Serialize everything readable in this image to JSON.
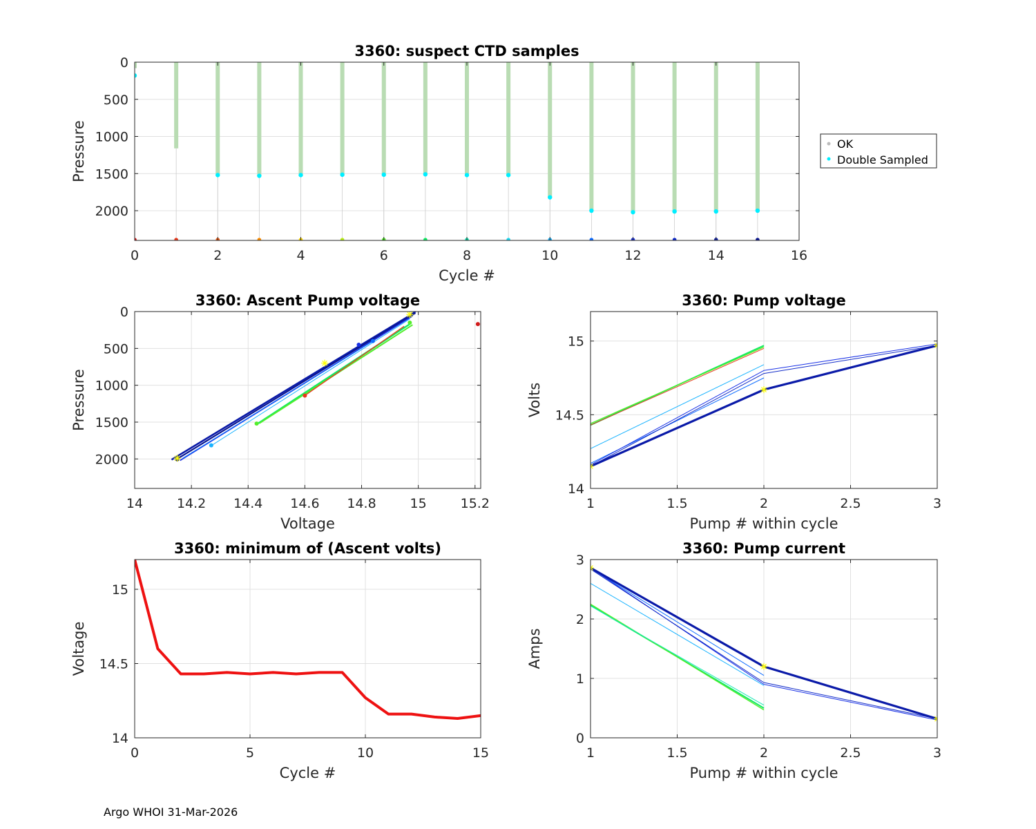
{
  "footer": "Argo WHOI 31-Mar-2026",
  "colors": {
    "ok": "#b9dcb3",
    "double": "#00eeff",
    "minline": "#ee1111",
    "marker": "#ffff00",
    "grid": "#e0e0e0"
  },
  "chart_data": [
    {
      "id": "ctd",
      "type": "scatter",
      "title": "3360: suspect CTD samples",
      "xlabel": "Cycle #",
      "ylabel": "Pressure",
      "xlim": [
        0,
        16
      ],
      "ylim": [
        0,
        2400
      ],
      "y_reversed": true,
      "xticks": [
        0,
        2,
        4,
        6,
        8,
        10,
        12,
        14,
        16
      ],
      "yticks": [
        0,
        500,
        1000,
        1500,
        2000
      ],
      "legend": {
        "position": "right",
        "entries": [
          "OK",
          "Double Sampled"
        ]
      },
      "profiles": [
        {
          "cycle": 0,
          "max_p": 80,
          "double_p": 180
        },
        {
          "cycle": 1,
          "max_p": 1160,
          "double_p": null
        },
        {
          "cycle": 2,
          "max_p": 1520,
          "double_p": 1520
        },
        {
          "cycle": 3,
          "max_p": 1530,
          "double_p": 1530
        },
        {
          "cycle": 4,
          "max_p": 1520,
          "double_p": 1520
        },
        {
          "cycle": 5,
          "max_p": 1515,
          "double_p": 1515
        },
        {
          "cycle": 6,
          "max_p": 1515,
          "double_p": 1515
        },
        {
          "cycle": 7,
          "max_p": 1510,
          "double_p": 1510
        },
        {
          "cycle": 8,
          "max_p": 1520,
          "double_p": 1520
        },
        {
          "cycle": 9,
          "max_p": 1520,
          "double_p": 1520
        },
        {
          "cycle": 10,
          "max_p": 1820,
          "double_p": 1820
        },
        {
          "cycle": 11,
          "max_p": 2000,
          "double_p": 2000
        },
        {
          "cycle": 12,
          "max_p": 2020,
          "double_p": 2020
        },
        {
          "cycle": 13,
          "max_p": 2010,
          "double_p": 2010
        },
        {
          "cycle": 14,
          "max_p": 2010,
          "double_p": 2010
        },
        {
          "cycle": 15,
          "max_p": 2000,
          "double_p": 2000
        }
      ],
      "bottom_markers": {
        "pressure": 2400,
        "colors": [
          "#d11a1a",
          "#e83a1e",
          "#f15a10",
          "#fb8c00",
          "#ffd800",
          "#b9ef19",
          "#53ee2b",
          "#11ea64",
          "#14e7b6",
          "#1fd8f0",
          "#19b3ff",
          "#0f6dff",
          "#1830e6",
          "#102ac8",
          "#0c20b3",
          "#0a1590"
        ]
      }
    },
    {
      "id": "ascent",
      "type": "line",
      "title": "3360: Ascent Pump voltage",
      "xlabel": "Voltage",
      "ylabel": "Pressure",
      "xlim": [
        14,
        15.22
      ],
      "ylim": [
        0,
        2400
      ],
      "y_reversed": true,
      "xticks": [
        14,
        14.2,
        14.4,
        14.6,
        14.8,
        15,
        15.2
      ],
      "yticks": [
        0,
        500,
        1000,
        1500,
        2000
      ],
      "series": [
        {
          "color": "#0a1aa8",
          "width": 2.6,
          "points": [
            [
              14.13,
              2010
            ],
            [
              14.98,
              30
            ],
            [
              14.99,
              0
            ]
          ]
        },
        {
          "color": "#0a1590",
          "width": 2.2,
          "points": [
            [
              14.15,
              2000
            ],
            [
              14.99,
              20
            ]
          ]
        },
        {
          "color": "#1830e6",
          "width": 1.8,
          "points": [
            [
              14.16,
              2020
            ],
            [
              14.98,
              60
            ]
          ]
        },
        {
          "color": "#0f6dff",
          "width": 1.2,
          "points": [
            [
              14.17,
              1990
            ],
            [
              14.84,
              400
            ]
          ]
        },
        {
          "color": "#19b3ff",
          "width": 1.0,
          "points": [
            [
              14.27,
              1820
            ],
            [
              14.97,
              100
            ]
          ]
        },
        {
          "color": "#11ea64",
          "width": 2.4,
          "points": [
            [
              14.43,
              1530
            ],
            [
              14.97,
              170
            ]
          ]
        },
        {
          "color": "#53ee2b",
          "width": 2.0,
          "points": [
            [
              14.44,
              1515
            ],
            [
              14.98,
              180
            ]
          ]
        },
        {
          "color": "#e83a1e",
          "width": 1.4,
          "points": [
            [
              14.6,
              1140
            ],
            [
              14.95,
              200
            ]
          ]
        }
      ],
      "points": [
        {
          "x": 15.21,
          "y": 170,
          "color": "#d11a1a"
        },
        {
          "x": 14.6,
          "y": 1140,
          "color": "#e83a1e"
        },
        {
          "x": 14.43,
          "y": 1520,
          "color": "#53ee2b"
        },
        {
          "x": 14.97,
          "y": 150,
          "color": "#53ee2b"
        },
        {
          "x": 14.84,
          "y": 400,
          "color": "#0f6dff"
        },
        {
          "x": 14.79,
          "y": 450,
          "color": "#1830e6"
        },
        {
          "x": 14.27,
          "y": 1815,
          "color": "#19b3ff"
        },
        {
          "x": 14.15,
          "y": 2005,
          "color": "#0a1590"
        }
      ],
      "markers": [
        [
          14.67,
          700
        ],
        [
          14.15,
          1990
        ],
        [
          14.97,
          40
        ]
      ]
    },
    {
      "id": "pumpv",
      "type": "line",
      "title": "3360: Pump voltage",
      "xlabel": "Pump # within cycle",
      "ylabel": "Volts",
      "xlim": [
        1,
        3
      ],
      "ylim": [
        14,
        15.2
      ],
      "xticks": [
        1,
        1.5,
        2,
        2.5,
        3
      ],
      "yticks": [
        14,
        14.5,
        15
      ],
      "series": [
        {
          "color": "#11ea64",
          "width": 2.0,
          "points": [
            [
              1,
              14.43
            ],
            [
              2,
              14.97
            ]
          ]
        },
        {
          "color": "#53ee2b",
          "width": 1.4,
          "points": [
            [
              1,
              14.44
            ],
            [
              2,
              14.96
            ]
          ]
        },
        {
          "color": "#e83a1e",
          "width": 1.0,
          "points": [
            [
              1,
              14.43
            ],
            [
              2,
              14.95
            ]
          ]
        },
        {
          "color": "#19b3ff",
          "width": 1.0,
          "points": [
            [
              1,
              14.27
            ],
            [
              2,
              14.84
            ]
          ]
        },
        {
          "color": "#0f6dff",
          "width": 1.0,
          "points": [
            [
              1,
              14.17
            ],
            [
              2,
              14.75
            ]
          ]
        },
        {
          "color": "#1830e6",
          "width": 1.0,
          "points": [
            [
              1,
              14.16
            ],
            [
              2,
              14.8
            ],
            [
              3,
              14.98
            ]
          ]
        },
        {
          "color": "#102ac8",
          "width": 1.0,
          "points": [
            [
              1,
              14.15
            ],
            [
              2,
              14.78
            ],
            [
              3,
              14.97
            ]
          ]
        },
        {
          "color": "#0a1aa8",
          "width": 3.2,
          "points": [
            [
              1,
              14.15
            ],
            [
              2,
              14.67
            ],
            [
              3,
              14.97
            ]
          ]
        }
      ],
      "markers": [
        [
          1,
          14.15
        ],
        [
          2,
          14.67
        ],
        [
          3,
          14.97
        ]
      ]
    },
    {
      "id": "minv",
      "type": "line",
      "title": "3360: minimum of (Ascent volts)",
      "xlabel": "Cycle #",
      "ylabel": "Voltage",
      "xlim": [
        0,
        15
      ],
      "ylim": [
        14,
        15.2
      ],
      "xticks": [
        0,
        5,
        10,
        15
      ],
      "yticks": [
        14,
        14.5,
        15
      ],
      "series": [
        {
          "color": "#ee1111",
          "width": 4,
          "points": [
            [
              0,
              15.2
            ],
            [
              1,
              14.6
            ],
            [
              2,
              14.43
            ],
            [
              3,
              14.43
            ],
            [
              4,
              14.44
            ],
            [
              5,
              14.43
            ],
            [
              6,
              14.44
            ],
            [
              7,
              14.43
            ],
            [
              8,
              14.44
            ],
            [
              9,
              14.44
            ],
            [
              10,
              14.27
            ],
            [
              11,
              14.16
            ],
            [
              12,
              14.16
            ],
            [
              13,
              14.14
            ],
            [
              14,
              14.13
            ],
            [
              15,
              14.15
            ]
          ]
        }
      ]
    },
    {
      "id": "pumpc",
      "type": "line",
      "title": "3360: Pump current",
      "xlabel": "Pump # within cycle",
      "ylabel": "Amps",
      "xlim": [
        1,
        3
      ],
      "ylim": [
        0,
        3
      ],
      "xticks": [
        1,
        1.5,
        2,
        2.5,
        3
      ],
      "yticks": [
        0,
        1,
        2,
        3
      ],
      "series": [
        {
          "color": "#11ea64",
          "width": 2.0,
          "points": [
            [
              1,
              2.23
            ],
            [
              2,
              0.5
            ]
          ]
        },
        {
          "color": "#53ee2b",
          "width": 1.4,
          "points": [
            [
              1,
              2.25
            ],
            [
              2,
              0.47
            ]
          ]
        },
        {
          "color": "#14e7b6",
          "width": 1.0,
          "points": [
            [
              1,
              2.22
            ],
            [
              2,
              0.55
            ]
          ]
        },
        {
          "color": "#19b3ff",
          "width": 1.0,
          "points": [
            [
              1,
              2.6
            ],
            [
              2,
              0.88
            ]
          ]
        },
        {
          "color": "#0f6dff",
          "width": 1.0,
          "points": [
            [
              1,
              2.85
            ],
            [
              2,
              1.05
            ]
          ]
        },
        {
          "color": "#1830e6",
          "width": 1.0,
          "points": [
            [
              1,
              2.86
            ],
            [
              2,
              0.9
            ],
            [
              3,
              0.3
            ]
          ]
        },
        {
          "color": "#102ac8",
          "width": 1.0,
          "points": [
            [
              1,
              2.84
            ],
            [
              2,
              0.93
            ],
            [
              3,
              0.32
            ]
          ]
        },
        {
          "color": "#0a1aa8",
          "width": 3.2,
          "points": [
            [
              1,
              2.86
            ],
            [
              2,
              1.2
            ],
            [
              3,
              0.32
            ]
          ]
        }
      ],
      "markers": [
        [
          1,
          2.86
        ],
        [
          2,
          1.2
        ],
        [
          3,
          0.32
        ]
      ]
    }
  ]
}
